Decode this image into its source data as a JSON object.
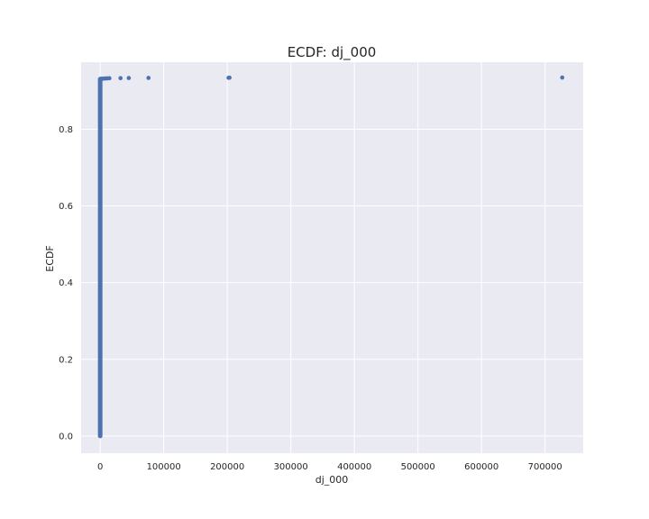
{
  "chart_data": {
    "type": "scatter",
    "title": "ECDF: dj_000",
    "xlabel": "dj_000",
    "ylabel": "ECDF",
    "xlim": [
      -30000,
      760000
    ],
    "ylim": [
      -0.045,
      0.975
    ],
    "xticks": [
      0,
      100000,
      200000,
      300000,
      400000,
      500000,
      600000,
      700000
    ],
    "xtick_labels": [
      "0",
      "100000",
      "200000",
      "300000",
      "400000",
      "500000",
      "600000",
      "700000"
    ],
    "yticks": [
      0.0,
      0.2,
      0.4,
      0.6,
      0.8
    ],
    "ytick_labels": [
      "0.0",
      "0.2",
      "0.4",
      "0.6",
      "0.8"
    ],
    "grid": true,
    "background": "#EAEAF2",
    "marker_color": "#4C72B0",
    "dense_column": {
      "x": 0,
      "y_min": 0.0,
      "y_max": 0.931
    },
    "points": [
      {
        "x": 1000,
        "y": 0.9315
      },
      {
        "x": 2500,
        "y": 0.9318
      },
      {
        "x": 4000,
        "y": 0.932
      },
      {
        "x": 6000,
        "y": 0.9322
      },
      {
        "x": 8500,
        "y": 0.9325
      },
      {
        "x": 11000,
        "y": 0.9328
      },
      {
        "x": 14500,
        "y": 0.9331
      },
      {
        "x": 32000,
        "y": 0.9334
      },
      {
        "x": 45000,
        "y": 0.9337
      },
      {
        "x": 76000,
        "y": 0.934
      },
      {
        "x": 202000,
        "y": 0.9343
      },
      {
        "x": 203500,
        "y": 0.9346
      },
      {
        "x": 727000,
        "y": 0.9349
      }
    ]
  }
}
